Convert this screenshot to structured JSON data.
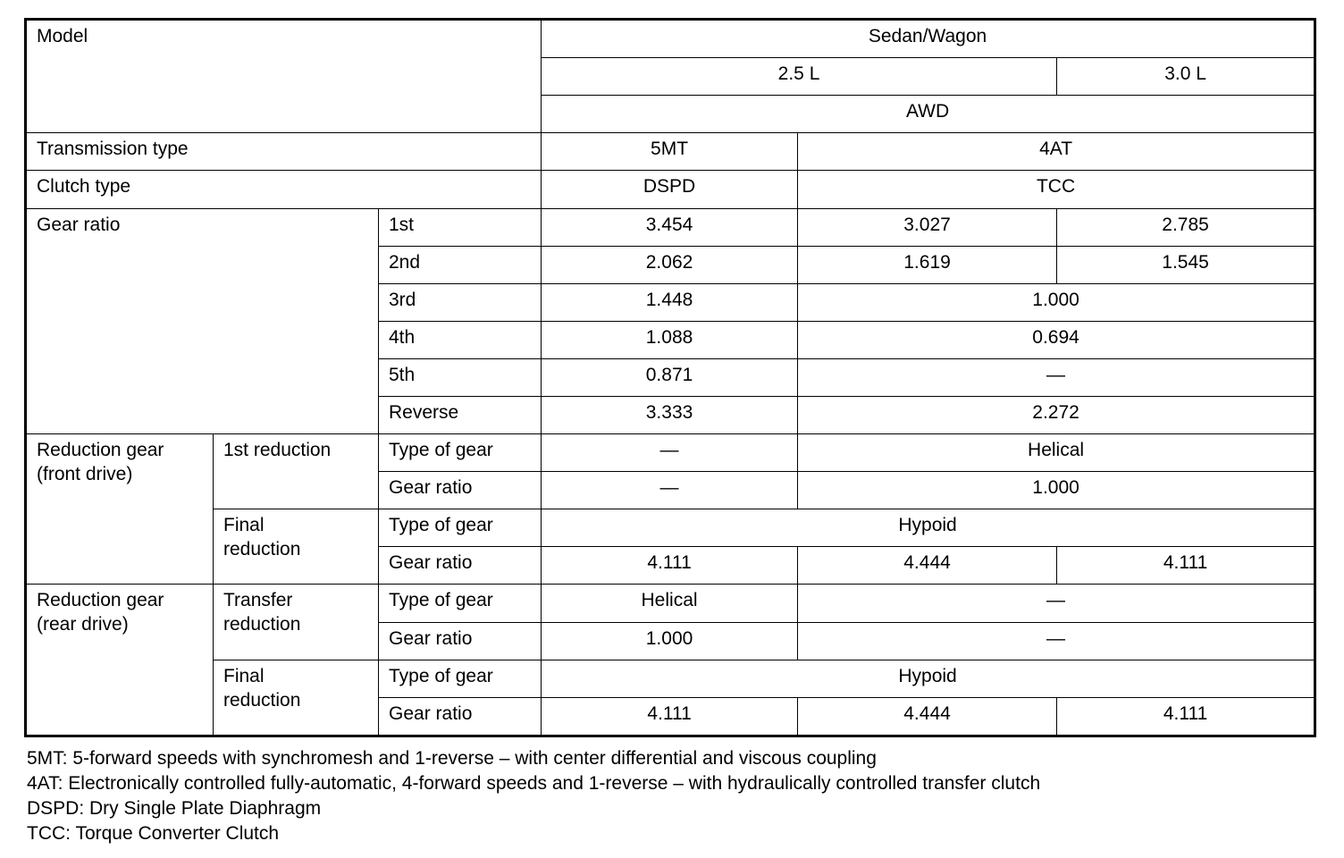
{
  "table": {
    "rows": [
      [
        {
          "t": "Model",
          "cs": 3,
          "rs": 3
        },
        {
          "t": "Sedan/Wagon",
          "cs": 3,
          "v": 1
        }
      ],
      [
        {
          "t": "2.5 L",
          "cs": 2,
          "v": 1
        },
        {
          "t": "3.0 L",
          "v": 1
        }
      ],
      [
        {
          "t": "AWD",
          "cs": 3,
          "v": 1
        }
      ],
      [
        {
          "t": "Transmission type",
          "cs": 3
        },
        {
          "t": "5MT",
          "v": 1
        },
        {
          "t": "4AT",
          "cs": 2,
          "v": 1
        }
      ],
      [
        {
          "t": "Clutch type",
          "cs": 3
        },
        {
          "t": "DSPD",
          "v": 1
        },
        {
          "t": "TCC",
          "cs": 2,
          "v": 1
        }
      ],
      [
        {
          "t": "Gear ratio",
          "cs": 2,
          "rs": 6
        },
        {
          "t": "1st"
        },
        {
          "t": "3.454",
          "v": 1
        },
        {
          "t": "3.027",
          "v": 1
        },
        {
          "t": "2.785",
          "v": 1
        }
      ],
      [
        {
          "t": "2nd"
        },
        {
          "t": "2.062",
          "v": 1
        },
        {
          "t": "1.619",
          "v": 1
        },
        {
          "t": "1.545",
          "v": 1
        }
      ],
      [
        {
          "t": "3rd"
        },
        {
          "t": "1.448",
          "v": 1
        },
        {
          "t": "1.000",
          "cs": 2,
          "v": 1
        }
      ],
      [
        {
          "t": "4th"
        },
        {
          "t": "1.088",
          "v": 1
        },
        {
          "t": "0.694",
          "cs": 2,
          "v": 1
        }
      ],
      [
        {
          "t": "5th"
        },
        {
          "t": "0.871",
          "v": 1
        },
        {
          "t": "—",
          "cs": 2,
          "v": 1
        }
      ],
      [
        {
          "t": "Reverse"
        },
        {
          "t": "3.333",
          "v": 1
        },
        {
          "t": "2.272",
          "cs": 2,
          "v": 1
        }
      ],
      [
        {
          "t": "Reduction gear\n(front drive)",
          "rs": 4
        },
        {
          "t": "1st reduction",
          "rs": 2
        },
        {
          "t": "Type of gear"
        },
        {
          "t": "—",
          "v": 1
        },
        {
          "t": "Helical",
          "cs": 2,
          "v": 1
        }
      ],
      [
        {
          "t": "Gear ratio"
        },
        {
          "t": "—",
          "v": 1
        },
        {
          "t": "1.000",
          "cs": 2,
          "v": 1
        }
      ],
      [
        {
          "t": "Final\nreduction",
          "rs": 2
        },
        {
          "t": "Type of gear"
        },
        {
          "t": "Hypoid",
          "cs": 3,
          "v": 1
        }
      ],
      [
        {
          "t": "Gear ratio"
        },
        {
          "t": "4.111",
          "v": 1
        },
        {
          "t": "4.444",
          "v": 1
        },
        {
          "t": "4.111",
          "v": 1
        }
      ],
      [
        {
          "t": "Reduction gear\n(rear drive)",
          "rs": 4
        },
        {
          "t": "Transfer\nreduction",
          "rs": 2
        },
        {
          "t": "Type of gear"
        },
        {
          "t": "Helical",
          "v": 1
        },
        {
          "t": "—",
          "cs": 2,
          "v": 1
        }
      ],
      [
        {
          "t": "Gear ratio"
        },
        {
          "t": "1.000",
          "v": 1
        },
        {
          "t": "—",
          "cs": 2,
          "v": 1
        }
      ],
      [
        {
          "t": "Final\nreduction",
          "rs": 2
        },
        {
          "t": "Type of gear"
        },
        {
          "t": "Hypoid",
          "cs": 3,
          "v": 1
        }
      ],
      [
        {
          "t": "Gear ratio"
        },
        {
          "t": "4.111",
          "v": 1
        },
        {
          "t": "4.444",
          "v": 1
        },
        {
          "t": "4.111",
          "v": 1
        }
      ]
    ]
  },
  "notes": [
    "5MT: 5-forward speeds with synchromesh and 1-reverse – with center differential and viscous coupling",
    "4AT: Electronically controlled fully-automatic, 4-forward speeds and 1-reverse – with hydraulically controlled transfer clutch",
    "DSPD: Dry Single Plate Diaphragm",
    "TCC: Torque Converter Clutch"
  ]
}
